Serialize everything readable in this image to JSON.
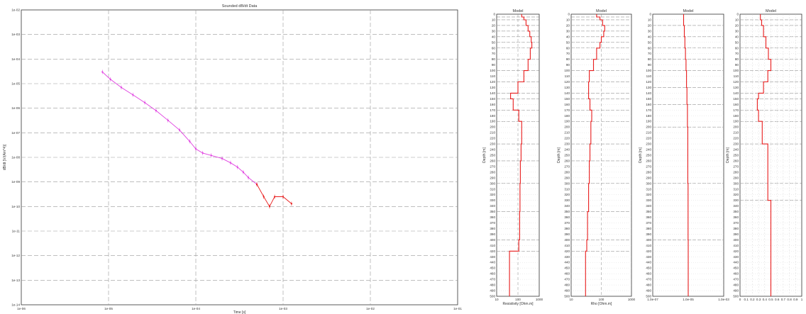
{
  "chart_data": [
    {
      "type": "line",
      "title": "Sounded dB/dt Data",
      "xlabel": "Time [s]",
      "ylabel": "dB/dt [V/(Am^4)]",
      "xscale": "log",
      "yscale": "log",
      "xlim": [
        1e-06,
        0.1
      ],
      "ylim": [
        1e-14,
        0.01
      ],
      "x_tick_labels": [
        "1e-06",
        "1e-05",
        "1e-04",
        "1e-03",
        "1e-02",
        "1e-01"
      ],
      "y_tick_labels": [
        "1e-14",
        "1e-13",
        "1e-12",
        "1e-11",
        "1e-10",
        "1e-09",
        "1e-08",
        "1e-07",
        "1e-06",
        "1e-05",
        "1e-04",
        "1e-03",
        "1e-02"
      ],
      "grid": true,
      "series": [
        {
          "color": "#e040e0",
          "x": [
            8.5e-06,
            1.05e-05,
            1.4e-05,
            1.9e-05,
            2.6e-05,
            3.5e-05,
            4.8e-05,
            6.5e-05,
            8.5e-05,
            0.0001,
            0.00012,
            0.00015,
            0.0002,
            0.00025,
            0.0003,
            0.00035,
            0.0004,
            0.0005
          ],
          "y": [
            3e-05,
            1.5e-05,
            7e-06,
            3.5e-06,
            1.7e-06,
            8e-07,
            3.2e-07,
            1.3e-07,
            4.5e-08,
            2.2e-08,
            1.5e-08,
            1.2e-08,
            9e-09,
            6e-09,
            4e-09,
            2.5e-09,
            1.5e-09,
            8e-10
          ]
        },
        {
          "color": "#e81c1c",
          "x": [
            0.0005,
            0.0006,
            0.0007,
            0.0008,
            0.001,
            0.00125
          ],
          "y": [
            8e-10,
            2.5e-10,
            1e-10,
            2.5e-10,
            2.5e-10,
            1.3e-10
          ]
        }
      ]
    },
    {
      "type": "line",
      "title": "Model",
      "xlabel": "Resistivity [Ohm.m]",
      "ylabel": "Depth [m]",
      "xscale": "log",
      "xlim": [
        10,
        1000
      ],
      "ylim": [
        0,
        500
      ],
      "x_tick_labels": [
        "10",
        "100",
        "1000"
      ],
      "y_tick_labels": [
        "0",
        "10",
        "20",
        "30",
        "40",
        "50",
        "60",
        "70",
        "80",
        "90",
        "100",
        "110",
        "120",
        "130",
        "140",
        "150",
        "160",
        "170",
        "180",
        "190",
        "200",
        "210",
        "220",
        "230",
        "240",
        "250",
        "260",
        "270",
        "280",
        "290",
        "300",
        "310",
        "320",
        "330",
        "340",
        "350",
        "360",
        "370",
        "380",
        "390",
        "400",
        "410",
        "420",
        "430",
        "440",
        "450",
        "460",
        "470",
        "480",
        "490",
        "500"
      ],
      "grid": true,
      "step_series": {
        "color": "#e81c1c",
        "depth": [
          0,
          5,
          10,
          20,
          30,
          40,
          50,
          60,
          80,
          100,
          120,
          140,
          150,
          170,
          190,
          230,
          260,
          300,
          350,
          400,
          420,
          500
        ],
        "value": [
          150,
          190,
          240,
          300,
          360,
          420,
          450,
          380,
          300,
          190,
          100,
          45,
          60,
          110,
          150,
          140,
          130,
          125,
          120,
          110,
          40
        ]
      },
      "guide_x": [
        100
      ]
    },
    {
      "type": "line",
      "title": "Model",
      "xlabel": "Rho [Ohm.m]",
      "ylabel": "Depth [m]",
      "xscale": "log",
      "xlim": [
        10,
        1000
      ],
      "ylim": [
        0,
        500
      ],
      "x_tick_labels": [
        "10",
        "100",
        "1000"
      ],
      "y_tick_labels": [
        "0",
        "10",
        "20",
        "30",
        "40",
        "50",
        "60",
        "70",
        "80",
        "90",
        "100",
        "110",
        "120",
        "130",
        "140",
        "150",
        "160",
        "170",
        "180",
        "190",
        "200",
        "210",
        "220",
        "230",
        "240",
        "250",
        "260",
        "270",
        "280",
        "290",
        "300",
        "310",
        "320",
        "330",
        "340",
        "350",
        "360",
        "370",
        "380",
        "390",
        "400",
        "410",
        "420",
        "430",
        "440",
        "450",
        "460",
        "470",
        "480",
        "490",
        "500"
      ],
      "grid": true,
      "step_series": {
        "color": "#e81c1c",
        "depth": [
          0,
          5,
          10,
          20,
          30,
          40,
          50,
          60,
          80,
          100,
          120,
          140,
          150,
          170,
          190,
          230,
          260,
          300,
          350,
          400,
          420,
          500
        ],
        "value": [
          70,
          90,
          110,
          130,
          120,
          100,
          90,
          70,
          55,
          40,
          38,
          38,
          42,
          48,
          45,
          42,
          40,
          38,
          35,
          33,
          30
        ]
      },
      "guide_x": [
        100
      ]
    },
    {
      "type": "line",
      "title": "Model",
      "xlabel": "",
      "ylabel": "Depth [m]",
      "xscale": "log",
      "xlim": [
        1e-07,
        0.001
      ],
      "ylim": [
        0,
        500
      ],
      "x_tick_labels": [
        "1.0e-07",
        "1.0e-05",
        "1.0e-03"
      ],
      "y_tick_labels": [
        "0",
        "10",
        "20",
        "30",
        "40",
        "50",
        "60",
        "70",
        "80",
        "90",
        "100",
        "110",
        "120",
        "130",
        "140",
        "150",
        "160",
        "170",
        "180",
        "190",
        "200",
        "210",
        "220",
        "230",
        "240",
        "250",
        "260",
        "270",
        "280",
        "290",
        "300",
        "310",
        "320",
        "330",
        "340",
        "350",
        "360",
        "370",
        "380",
        "390",
        "400",
        "410",
        "420",
        "430",
        "440",
        "450",
        "460",
        "470",
        "480",
        "490",
        "500"
      ],
      "grid": true,
      "step_series": {
        "color": "#e81c1c",
        "depth": [
          0,
          20,
          40,
          60,
          80,
          100,
          130,
          160,
          200,
          300,
          400,
          500
        ],
        "value": [
          5.5e-06,
          6e-06,
          6.5e-06,
          7e-06,
          7.5e-06,
          8e-06,
          8.5e-06,
          9e-06,
          9.5e-06,
          9.8e-06,
          1e-05
        ]
      },
      "guide_x": []
    },
    {
      "type": "line",
      "title": "Model",
      "xlabel": "",
      "ylabel": "Depth [m]",
      "xscale": "linear",
      "xlim": [
        0,
        1
      ],
      "ylim": [
        0,
        500
      ],
      "x_tick_labels": [
        "0",
        "0.1",
        "0.2",
        "0.3",
        "0.4",
        "0.5",
        "0.6",
        "0.7",
        "0.8",
        "0.9",
        "1"
      ],
      "y_tick_labels": [
        "0",
        "10",
        "20",
        "30",
        "40",
        "50",
        "60",
        "70",
        "80",
        "90",
        "100",
        "110",
        "120",
        "130",
        "140",
        "150",
        "160",
        "170",
        "180",
        "190",
        "200",
        "210",
        "220",
        "230",
        "240",
        "250",
        "260",
        "270",
        "280",
        "290",
        "300",
        "310",
        "320",
        "330",
        "340",
        "350",
        "360",
        "370",
        "380",
        "390",
        "400",
        "410",
        "420",
        "430",
        "440",
        "450",
        "460",
        "470",
        "480",
        "490",
        "500"
      ],
      "grid": true,
      "step_series": {
        "color": "#e81c1c",
        "depth": [
          0,
          10,
          20,
          40,
          60,
          80,
          100,
          120,
          140,
          150,
          170,
          190,
          230,
          300,
          330,
          500
        ],
        "value": [
          0.33,
          0.35,
          0.38,
          0.42,
          0.46,
          0.5,
          0.45,
          0.38,
          0.3,
          0.28,
          0.3,
          0.36,
          0.45,
          0.45,
          0.5
        ]
      },
      "guide_x": []
    }
  ]
}
